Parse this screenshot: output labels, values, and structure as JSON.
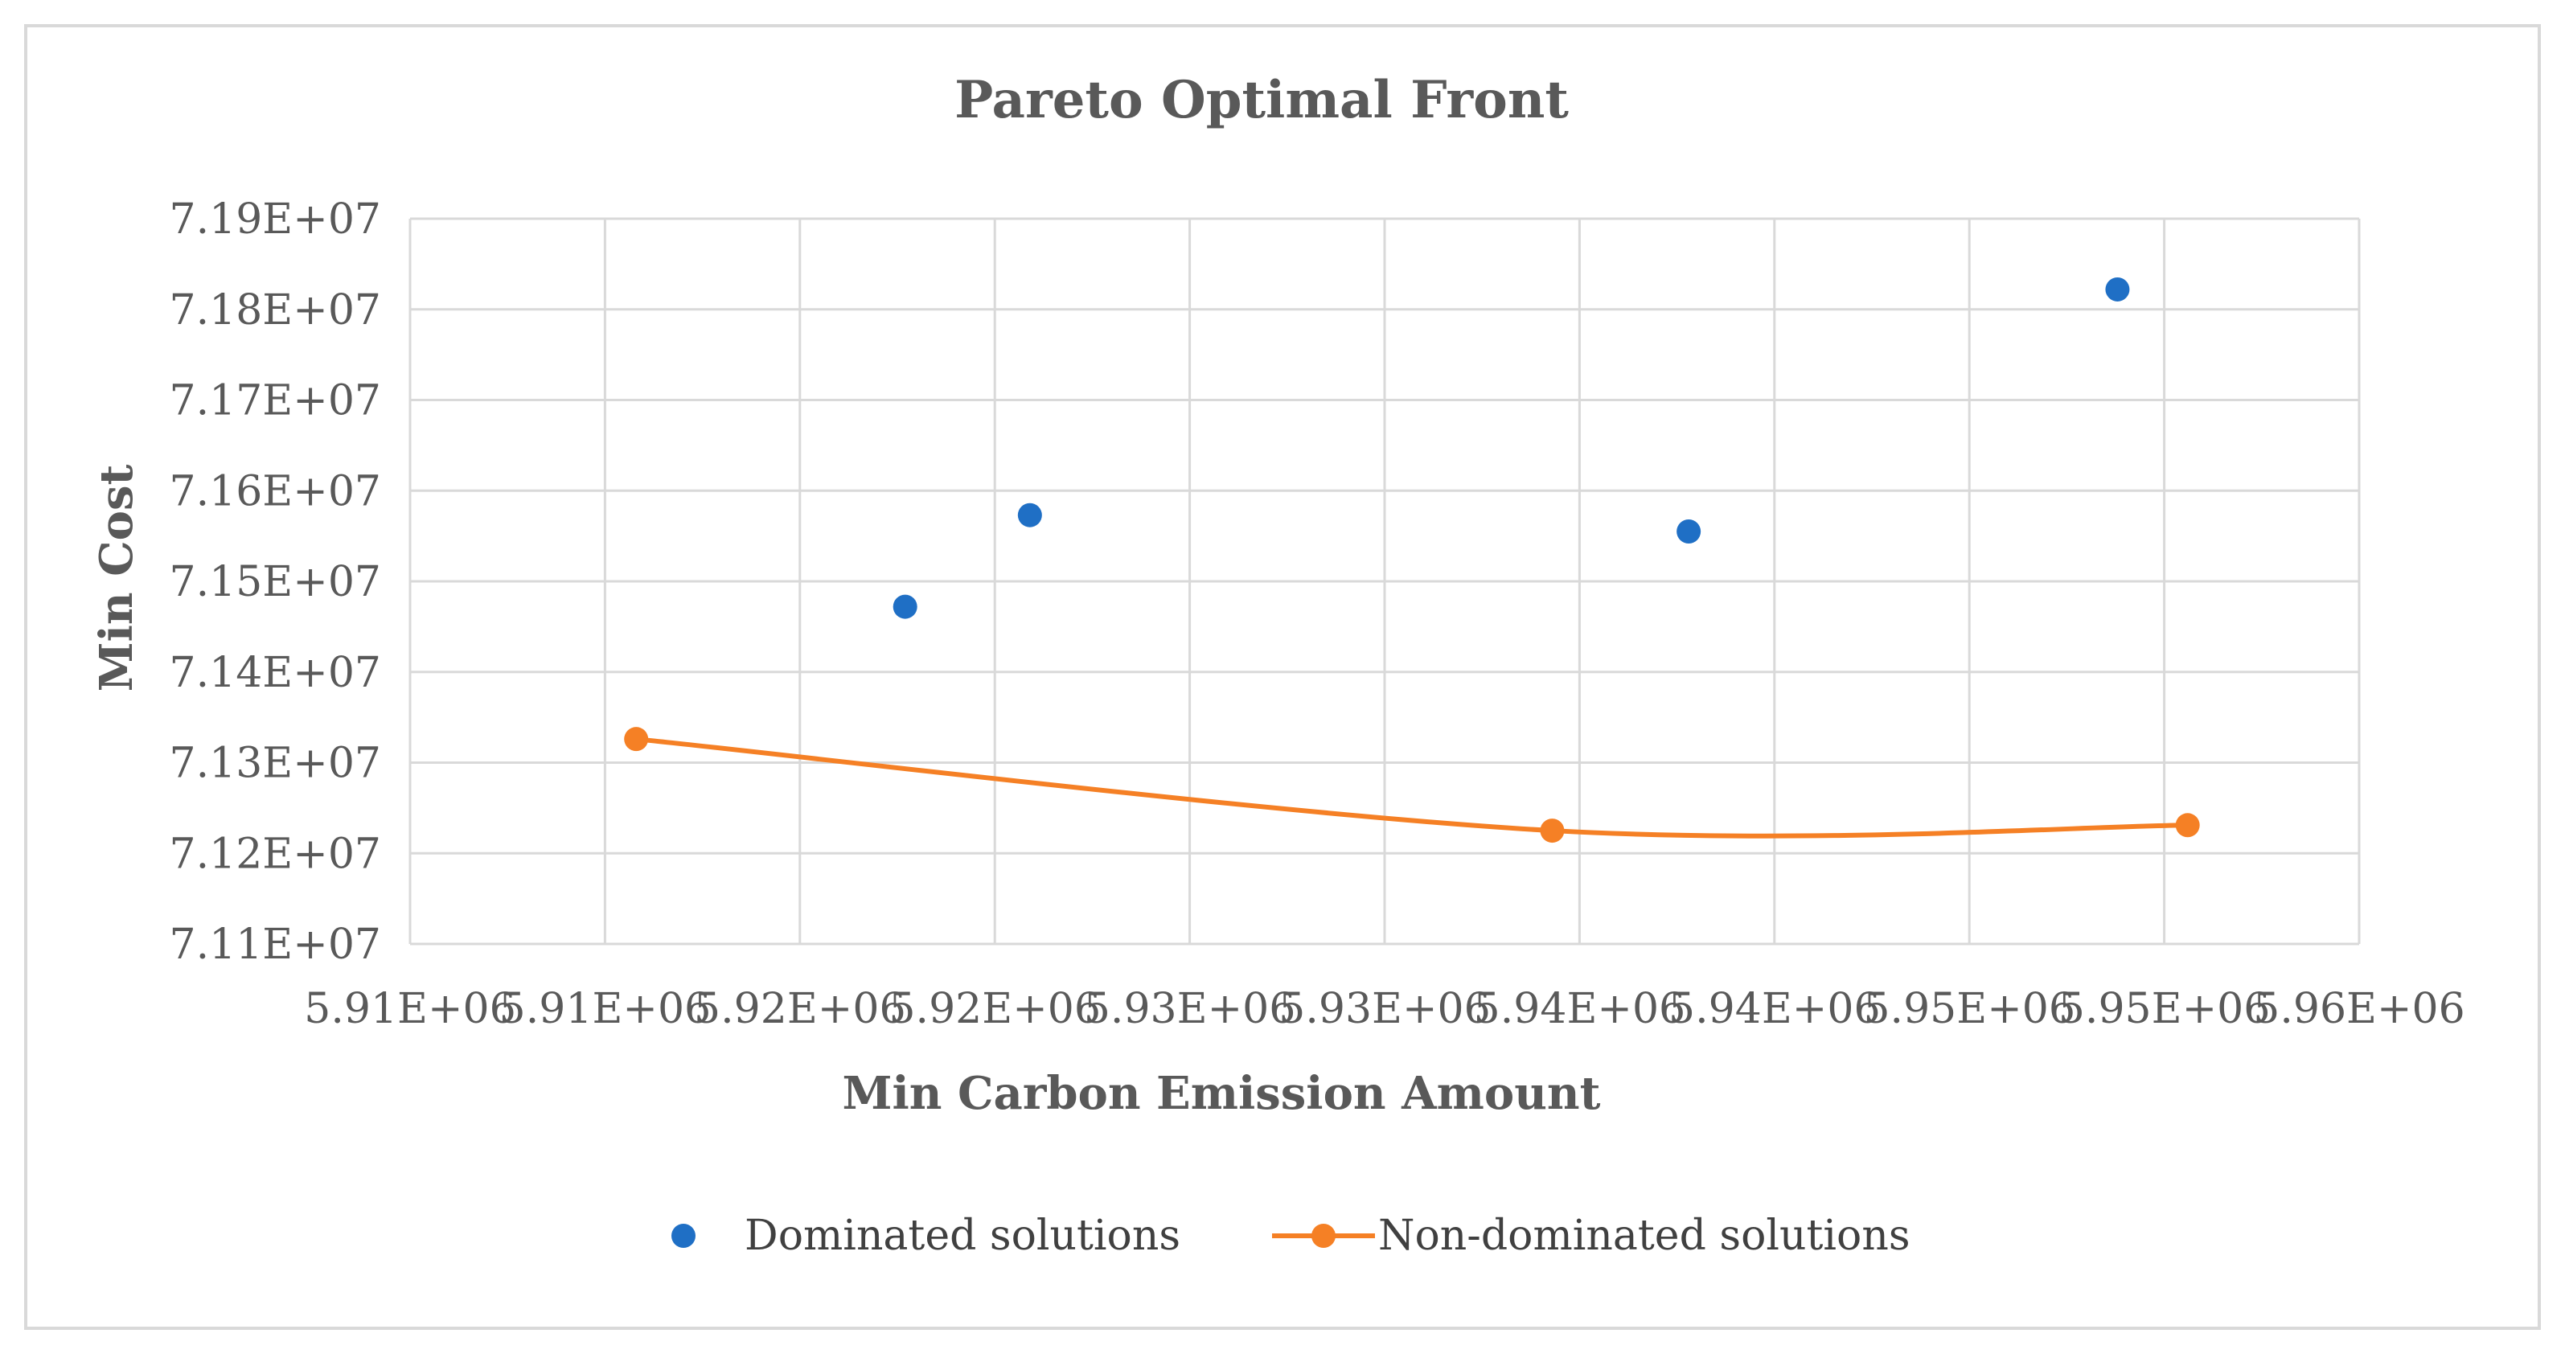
{
  "chart_data": {
    "type": "scatter",
    "title": "Pareto Optimal Front",
    "xlabel": "Min Carbon Emission Amount",
    "ylabel": "Min Cost",
    "xlim": [
      5905000,
      5955000
    ],
    "ylim": [
      71100000,
      71900000
    ],
    "x_ticks": [
      5905000,
      5910000,
      5915000,
      5920000,
      5925000,
      5930000,
      5935000,
      5940000,
      5945000,
      5950000,
      5955000
    ],
    "x_tick_labels": [
      "5.91E+06",
      "5.91E+06",
      "5.92E+06",
      "5.92E+06",
      "5.93E+06",
      "5.93E+06",
      "5.94E+06",
      "5.94E+06",
      "5.95E+06",
      "5.95E+06",
      "5.96E+06"
    ],
    "y_ticks": [
      71100000,
      71200000,
      71300000,
      71400000,
      71500000,
      71600000,
      71700000,
      71800000,
      71900000
    ],
    "y_tick_labels": [
      "7.11E+07",
      "7.12E+07",
      "7.13E+07",
      "7.14E+07",
      "7.15E+07",
      "7.16E+07",
      "7.17E+07",
      "7.18E+07",
      "7.19E+07"
    ],
    "grid": true,
    "legend_position": "bottom",
    "series": [
      {
        "name": "Dominated solutions",
        "style": "markers",
        "color": "#1f6fc5",
        "points": [
          {
            "x": 5917700,
            "y": 71472000
          },
          {
            "x": 5920900,
            "y": 71573000
          },
          {
            "x": 5937800,
            "y": 71555000
          },
          {
            "x": 5948800,
            "y": 71822000
          }
        ]
      },
      {
        "name": "Non-dominated solutions",
        "style": "smooth-line-markers",
        "color": "#f58025",
        "points": [
          {
            "x": 5910800,
            "y": 71326000
          },
          {
            "x": 5934300,
            "y": 71225000
          },
          {
            "x": 5950600,
            "y": 71231000
          }
        ]
      }
    ]
  }
}
